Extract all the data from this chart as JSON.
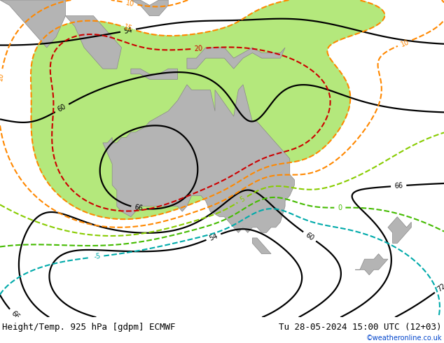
{
  "title_left": "Height/Temp. 925 hPa [gdpm] ECMWF",
  "title_right": "Tu 28-05-2024 15:00 UTC (12+03)",
  "credit": "©weatheronline.co.uk",
  "bg_color": "#c8c8c8",
  "land_color": "#c8c8c8",
  "green_fill": "#b4e87c",
  "green_fill2": "#78c840",
  "gray_land": "#b4b4b4",
  "title_fontsize": 9,
  "credit_color": "#0044cc",
  "map_lon_min": 90,
  "map_lon_max": 185,
  "map_lat_min": -55,
  "map_lat_max": 5,
  "fig_width": 6.34,
  "fig_height": 4.9,
  "dpi": 100
}
